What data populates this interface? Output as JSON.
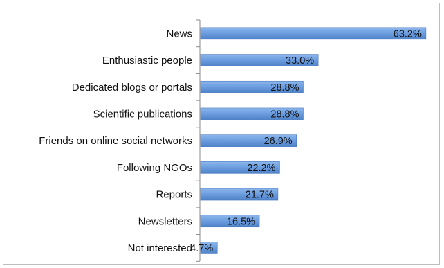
{
  "chart_data": {
    "type": "bar",
    "orientation": "horizontal",
    "categories": [
      "News",
      "Enthusiastic people",
      "Dedicated blogs or portals",
      "Scientific publications",
      "Friends on online social networks",
      "Following NGOs",
      "Reports",
      "Newsletters",
      "Not interested"
    ],
    "values": [
      63.2,
      33.0,
      28.8,
      28.8,
      26.9,
      22.2,
      21.7,
      16.5,
      4.7
    ],
    "value_labels": [
      "63.2%",
      "33.0%",
      "28.8%",
      "28.8%",
      "26.9%",
      "22.2%",
      "21.7%",
      "16.5%",
      "4.7%"
    ],
    "title": "",
    "xlabel": "",
    "ylabel": "",
    "xlim": [
      0,
      64
    ],
    "grid": false,
    "legend": "none",
    "bar_color": "#6d9ee0",
    "bar_edge_color": "#4a7bbf"
  }
}
